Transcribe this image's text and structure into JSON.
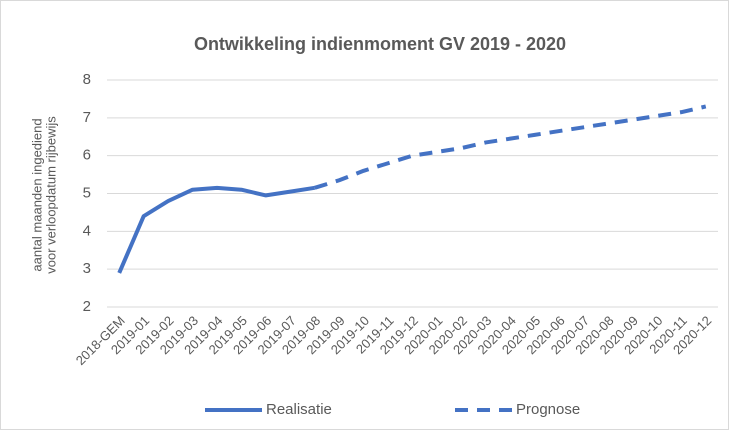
{
  "chart_data": {
    "type": "line",
    "title": "Ontwikkeling indienmoment GV 2019 - 2020",
    "y_label": [
      "aantal maanden ingediend",
      "voor verloopdatum rijbewijs"
    ],
    "categories": [
      "2018-GEM",
      "2019-01",
      "2019-02",
      "2019-03",
      "2019-04",
      "2019-05",
      "2019-06",
      "2019-07",
      "2019-08",
      "2019-09",
      "2019-10",
      "2019-11",
      "2019-12",
      "2020-01",
      "2020-02",
      "2020-03",
      "2020-04",
      "2020-05",
      "2020-06",
      "2020-07",
      "2020-08",
      "2020-09",
      "2020-10",
      "2020-11",
      "2020-12"
    ],
    "series": [
      {
        "name": "Realisatie",
        "color": "#4472c4",
        "dashed": false,
        "values": [
          2.9,
          4.4,
          4.8,
          5.1,
          5.15,
          5.1,
          4.95,
          5.05,
          5.15,
          null,
          null,
          null,
          null,
          null,
          null,
          null,
          null,
          null,
          null,
          null,
          null,
          null,
          null,
          null,
          null
        ]
      },
      {
        "name": "Prognose",
        "color": "#4472c4",
        "dashed": true,
        "values": [
          null,
          null,
          null,
          null,
          null,
          null,
          null,
          null,
          5.15,
          5.35,
          5.6,
          5.8,
          6.0,
          6.1,
          6.2,
          6.35,
          6.45,
          6.55,
          6.65,
          6.75,
          6.85,
          6.95,
          7.05,
          7.15,
          7.3
        ]
      }
    ],
    "ylim": [
      2,
      8
    ],
    "yticks": [
      2,
      3,
      4,
      5,
      6,
      7,
      8
    ],
    "grid": true,
    "legend": "bottom"
  }
}
